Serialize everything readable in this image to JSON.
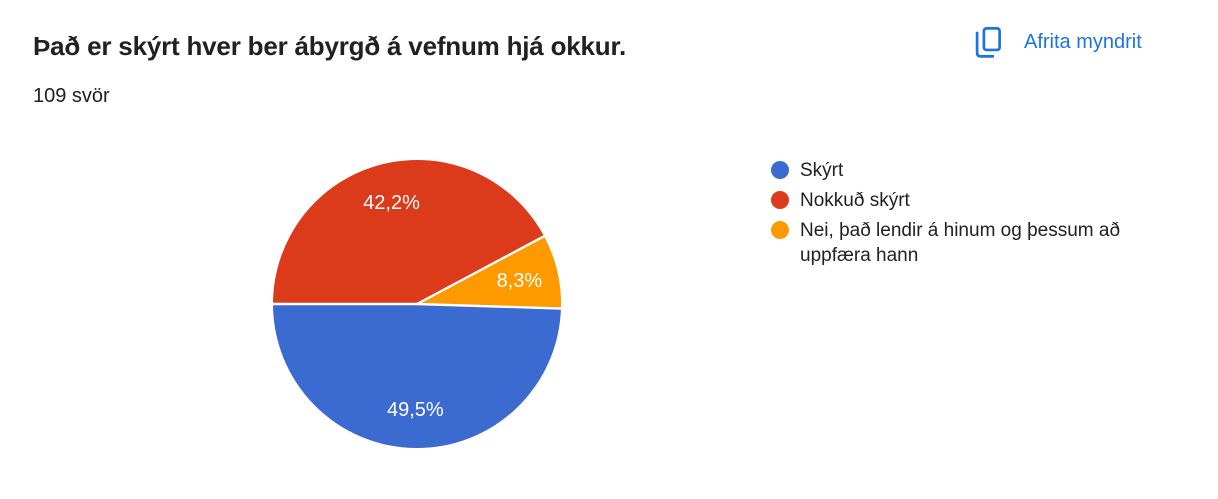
{
  "header": {
    "title": "Það er skýrt hver ber ábyrgð á vefnum hjá okkur.",
    "responses_count": "109 svör",
    "copy_button_label": "Afrita myndrit",
    "accent_color": "#1a73e8"
  },
  "chart_data": {
    "type": "pie",
    "title": "Það er skýrt hver ber ábyrgð á vefnum hjá okkur.",
    "total_responses": 109,
    "unit": "%",
    "legend_position": "right",
    "rotation": "clockwise",
    "start_angle_deg": 91.8,
    "slice_label_color": "#ffffff",
    "separator_color": "#ffffff",
    "slices": [
      {
        "label": "Skýrt",
        "value": 49.5,
        "display": "49,5%",
        "color": "#3B6BD1"
      },
      {
        "label": "Nokkuð skýrt",
        "value": 42.2,
        "display": "42,2%",
        "color": "#DB3A1B"
      },
      {
        "label": "Nei, það lendir á hinum og þessum að uppfæra hann",
        "value": 8.3,
        "display": "8,3%",
        "color": "#FE9900"
      }
    ]
  }
}
